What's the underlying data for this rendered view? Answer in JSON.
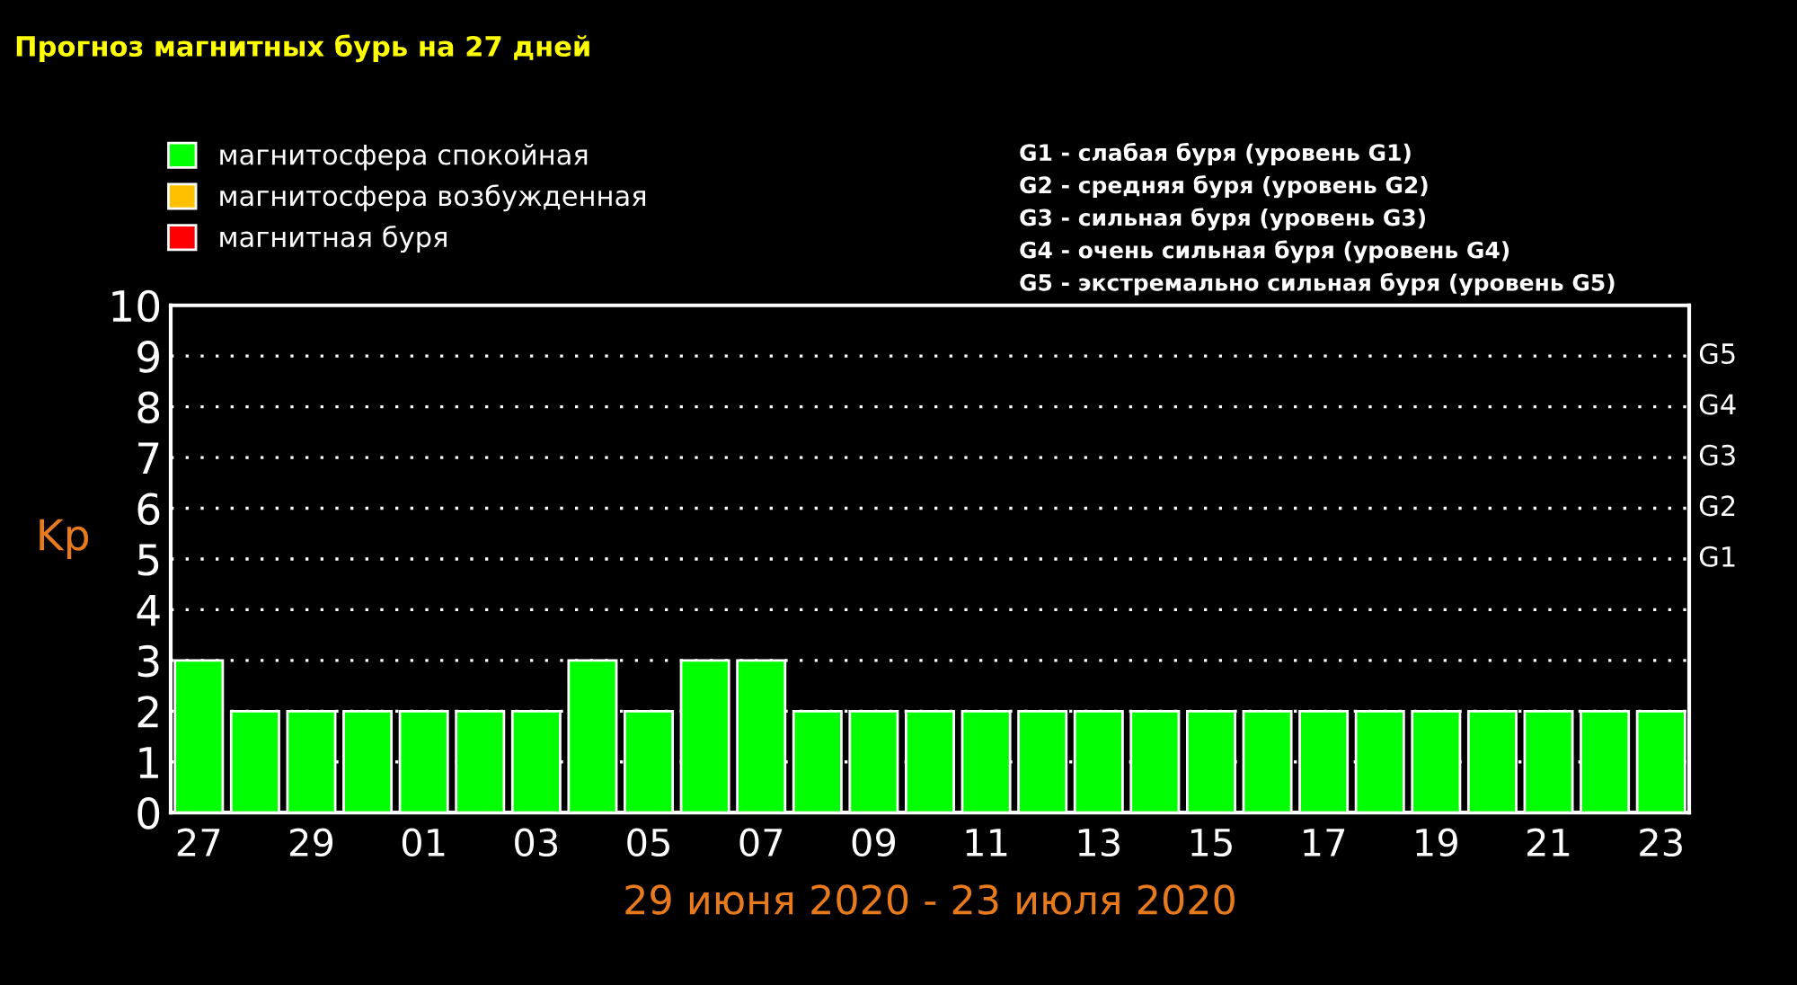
{
  "chart_data": {
    "type": "bar",
    "title": "Прогноз магнитных бурь на 27 дней",
    "xlabel": "29 июня 2020 - 23 июля 2020",
    "ylabel": "Kp",
    "categories": [
      "27",
      null,
      "29",
      null,
      "01",
      null,
      "03",
      null,
      "05",
      null,
      "07",
      null,
      "09",
      null,
      "11",
      null,
      "13",
      null,
      "15",
      null,
      "17",
      null,
      "19",
      null,
      "21",
      null,
      "23"
    ],
    "series": [
      {
        "name": "магнитосфера спокойная",
        "color": "#00ff00",
        "values": [
          3,
          2,
          2,
          2,
          2,
          2,
          2,
          3,
          2,
          3,
          3,
          2,
          2,
          2,
          2,
          2,
          2,
          2,
          2,
          2,
          2,
          2,
          2,
          2,
          2,
          2,
          2
        ]
      },
      {
        "name": "магнитосфера возбужденная",
        "color": "#ffc000",
        "values": [
          null,
          null,
          null,
          null,
          null,
          null,
          null,
          null,
          null,
          null,
          null,
          null,
          null,
          null,
          null,
          null,
          null,
          null,
          null,
          null,
          null,
          null,
          null,
          null,
          null,
          null,
          null
        ]
      },
      {
        "name": "магнитная буря",
        "color": "#ff0000",
        "values": [
          null,
          null,
          null,
          null,
          null,
          null,
          null,
          null,
          null,
          null,
          null,
          null,
          null,
          null,
          null,
          null,
          null,
          null,
          null,
          null,
          null,
          null,
          null,
          null,
          null,
          null,
          null
        ]
      }
    ],
    "ylim": [
      0,
      10
    ],
    "yticks": [
      0,
      1,
      2,
      3,
      4,
      5,
      6,
      7,
      8,
      9,
      10
    ],
    "grid": "y",
    "legend": "top left",
    "annotations": [
      "G1",
      "G2",
      "G3",
      "G4",
      "G5",
      "G1 - слабая буря (уровень G1)",
      "G2 - средняя буря (уровень G2)",
      "G3 - сильная буря (уровень G3)",
      "G4 - очень сильная буря (уровень G4)",
      "G5 - экстремально сильная буря (уровень G5)"
    ]
  }
}
